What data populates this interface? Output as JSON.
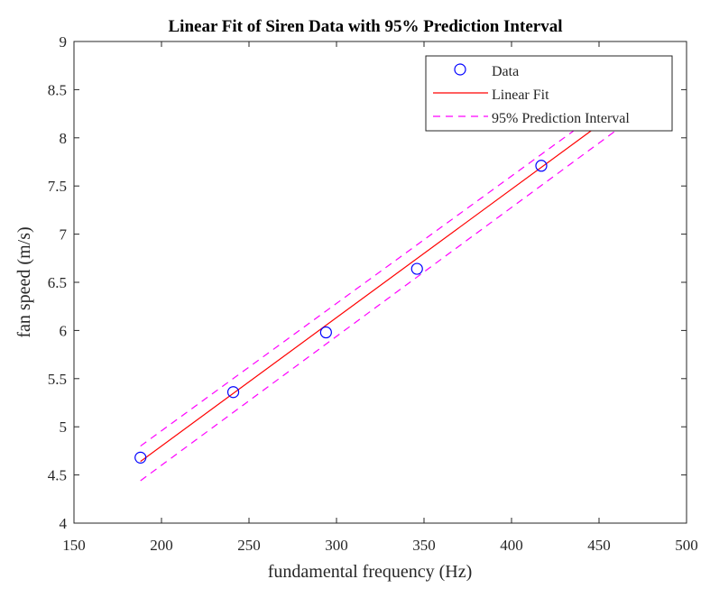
{
  "chart_data": {
    "type": "scatter",
    "title": "Linear Fit of Siren Data with 95% Prediction Interval",
    "xlabel": "fundamental frequency (Hz)",
    "ylabel": "fan speed (m/s)",
    "xlim": [
      150,
      500
    ],
    "ylim": [
      4,
      9
    ],
    "xticks": [
      "150",
      "200",
      "250",
      "300",
      "350",
      "400",
      "450",
      "500"
    ],
    "yticks": [
      "4",
      "4.5",
      "5",
      "5.5",
      "6",
      "6.5",
      "7",
      "7.5",
      "8",
      "8.5",
      "9"
    ],
    "grid": false,
    "legend_position": "top-right",
    "series": [
      {
        "name": "Data",
        "kind": "markers",
        "marker": "circle",
        "color": "#0000ff",
        "x": [
          188,
          241,
          294,
          346,
          417
        ],
        "y": [
          4.68,
          5.36,
          5.98,
          6.64,
          7.71
        ]
      },
      {
        "name": "Linear Fit",
        "kind": "line",
        "color": "#ff0000",
        "dash": "solid",
        "x": [
          188,
          446
        ],
        "y": [
          4.64,
          8.08
        ]
      },
      {
        "name": "95% Prediction Interval",
        "kind": "line",
        "color": "#ff00ff",
        "dash": "dashed",
        "x": [
          188,
          458
        ],
        "y": [
          4.8,
          8.37
        ],
        "lower": {
          "x": [
            188,
            460
          ],
          "y": [
            4.44,
            8.08
          ]
        }
      }
    ]
  }
}
